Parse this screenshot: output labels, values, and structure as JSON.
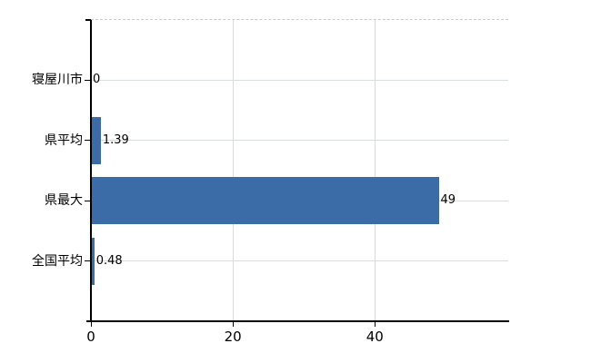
{
  "chart_data": {
    "type": "bar",
    "orientation": "horizontal",
    "title": "",
    "xlabel": "",
    "ylabel": "",
    "categories": [
      "寝屋川市",
      "県平均",
      "県最大",
      "全国平均"
    ],
    "values": [
      0,
      1.39,
      49,
      0.48
    ],
    "value_labels": [
      "0",
      "1.39",
      "49",
      "0.48"
    ],
    "x_ticks": [
      0,
      20,
      40
    ],
    "x_tick_labels": [
      "0",
      "20",
      "40"
    ],
    "xlim": [
      0,
      58.8
    ],
    "grid": true,
    "legend_position": "none",
    "colors": {
      "bar": "#3b6ca8",
      "axis": "#000000",
      "grid_horizontal": "#d8ded8",
      "grid_vertical": "#dadada",
      "top_border": "#c9c9c9",
      "text": "#000000",
      "background": "#ffffff"
    }
  }
}
